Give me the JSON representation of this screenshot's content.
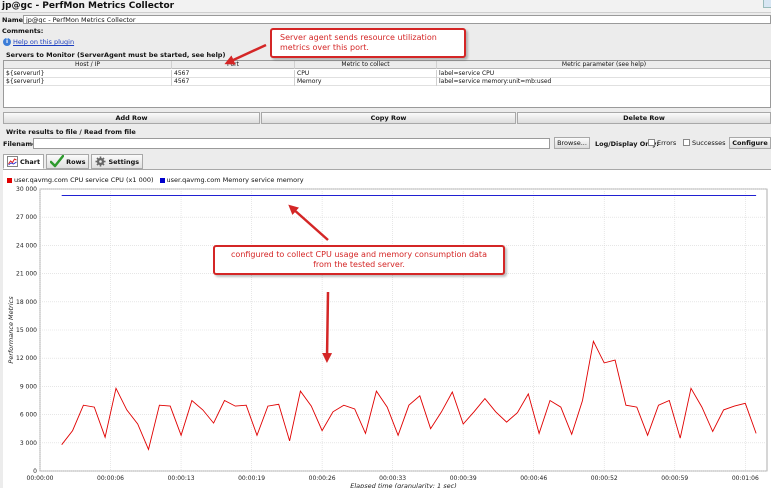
{
  "window": {
    "title": "jp@gc - PerfMon Metrics Collector"
  },
  "name_field": {
    "label": "Name:",
    "value": "jp@gc - PerfMon Metrics Collector"
  },
  "comments": {
    "label": "Comments:"
  },
  "help_link": {
    "label": "Help on this plugin"
  },
  "servers": {
    "title": "Servers to Monitor (ServerAgent must be started, see help)",
    "columns": [
      "Host / IP",
      "Port",
      "Metric to collect",
      "Metric parameter (see help)"
    ],
    "rows": [
      [
        "${serverurl}",
        "4567",
        "CPU",
        "label=service CPU"
      ],
      [
        "${serverurl}",
        "4567",
        "Memory",
        "label=service memory:unit=mb:used"
      ]
    ]
  },
  "buttons": {
    "add_row": "Add Row",
    "copy_row": "Copy Row",
    "delete_row": "Delete Row"
  },
  "file": {
    "title": "Write results to file / Read from file",
    "filename_label": "Filename",
    "filename_value": "",
    "browse": "Browse...",
    "log_display_label": "Log/Display Only:",
    "errors_label": "Errors",
    "successes_label": "Successes",
    "configure": "Configure"
  },
  "tabs": [
    {
      "label": "Chart",
      "icon": "chart-icon"
    },
    {
      "label": "Rows",
      "icon": "checkmark-icon"
    },
    {
      "label": "Settings",
      "icon": "gear-icon"
    }
  ],
  "annotations": {
    "top": "Server agent sends resource utilization metrics over this port.",
    "middle": "configured to collect CPU usage and memory consumption data from the tested server."
  },
  "colors": {
    "cpu": "#e00000",
    "memory": "#0000cc",
    "callout": "#d42626"
  },
  "chart_data": {
    "type": "line",
    "ylabel": "Performance Metrics",
    "xlabel": "Elapsed time (granularity: 1 sec)",
    "ylim": [
      0,
      30000
    ],
    "yticks": [
      "0",
      "3 000",
      "6 000",
      "9 000",
      "12 000",
      "15 000",
      "18 000",
      "21 000",
      "24 000",
      "27 000",
      "30 000"
    ],
    "xlim": [
      0,
      67
    ],
    "xticks": [
      {
        "t": 0,
        "label": "00:00:00"
      },
      {
        "t": 6.5,
        "label": "00:00:06"
      },
      {
        "t": 13,
        "label": "00:00:13"
      },
      {
        "t": 19.5,
        "label": "00:00:19"
      },
      {
        "t": 26,
        "label": "00:00:26"
      },
      {
        "t": 32.5,
        "label": "00:00:33"
      },
      {
        "t": 39,
        "label": "00:00:39"
      },
      {
        "t": 45.5,
        "label": "00:00:46"
      },
      {
        "t": 52,
        "label": "00:00:52"
      },
      {
        "t": 58.5,
        "label": "00:00:59"
      },
      {
        "t": 65,
        "label": "00:01:06"
      }
    ],
    "series": [
      {
        "name": "user.qavmg.com CPU service CPU (x1 000)",
        "x": [
          2,
          3,
          4,
          5,
          6,
          7,
          8,
          9,
          10,
          11,
          12,
          13,
          14,
          15,
          16,
          17,
          18,
          19,
          20,
          21,
          22,
          23,
          24,
          25,
          26,
          27,
          28,
          29,
          30,
          31,
          32,
          33,
          34,
          35,
          36,
          37,
          38,
          39,
          40,
          41,
          42,
          43,
          44,
          45,
          46,
          47,
          48,
          49,
          50,
          51,
          52,
          53,
          54,
          55,
          56,
          57,
          58,
          59,
          60,
          61,
          62,
          63,
          64,
          65,
          66
        ],
        "values": [
          2800,
          4300,
          7000,
          6800,
          3600,
          8800,
          6500,
          5000,
          2300,
          7000,
          6900,
          3800,
          7500,
          6500,
          5100,
          7500,
          6900,
          7000,
          3800,
          6900,
          7100,
          3200,
          8500,
          6900,
          4300,
          6300,
          7000,
          6600,
          4000,
          8500,
          6800,
          3800,
          7000,
          8000,
          4500,
          6300,
          8400,
          5000,
          6300,
          7700,
          6300,
          5200,
          6200,
          8200,
          4000,
          7500,
          6800,
          3900,
          7500,
          13800,
          11500,
          11800,
          7000,
          6800,
          3800,
          7000,
          7500,
          3500,
          8800,
          6800,
          4200,
          6500,
          6900,
          7200,
          4000
        ]
      },
      {
        "name": "user.qavmg.com Memory service memory",
        "x": [
          2,
          66
        ],
        "values": [
          29300,
          29300
        ]
      }
    ],
    "legend": "top-left",
    "grid": true
  }
}
